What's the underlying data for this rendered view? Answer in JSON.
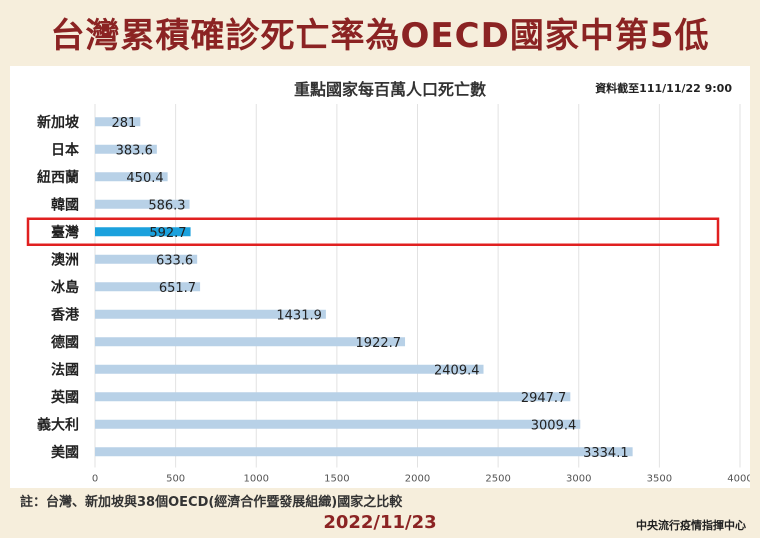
{
  "header": {
    "title": "台灣累積確診死亡率為OECD國家中第5低"
  },
  "chart_data": {
    "type": "bar",
    "orientation": "horizontal",
    "title": "重點國家每百萬人口死亡數",
    "source_note": "資料截至111/11/22 9:00",
    "categories": [
      "新加坡",
      "日本",
      "紐西蘭",
      "韓國",
      "臺灣",
      "澳洲",
      "冰島",
      "香港",
      "德國",
      "法國",
      "英國",
      "義大利",
      "美國"
    ],
    "values": [
      281,
      383.6,
      450.4,
      586.3,
      592.7,
      633.6,
      651.7,
      1431.9,
      1922.7,
      2409.4,
      2947.7,
      3009.4,
      3334.1
    ],
    "value_labels": [
      "281",
      "383.6",
      "450.4",
      "586.3",
      "592.7",
      "633.6",
      "651.7",
      "1431.9",
      "1922.7",
      "2409.4",
      "2947.7",
      "3009.4",
      "3334.1"
    ],
    "highlight_category": "臺灣",
    "xlim": [
      0,
      4000
    ],
    "xticks": [
      "0",
      "500",
      "1000",
      "1500",
      "2000",
      "2500",
      "3000",
      "3500",
      "4000"
    ],
    "xtick_values": [
      0,
      500,
      1000,
      1500,
      2000,
      2500,
      3000,
      3500,
      4000
    ],
    "grid": "vertical",
    "colors": {
      "bar": "#B8D1E7",
      "highlight_bar": "#1BA1DD",
      "highlight_box": "#E02020",
      "grid": "#E2E2E2"
    }
  },
  "footer": {
    "note": "註：台灣、新加坡與38個OECD(經濟合作暨發展組織)國家之比較",
    "date": "2022/11/23",
    "agency": "中央流行疫情指揮中心"
  }
}
